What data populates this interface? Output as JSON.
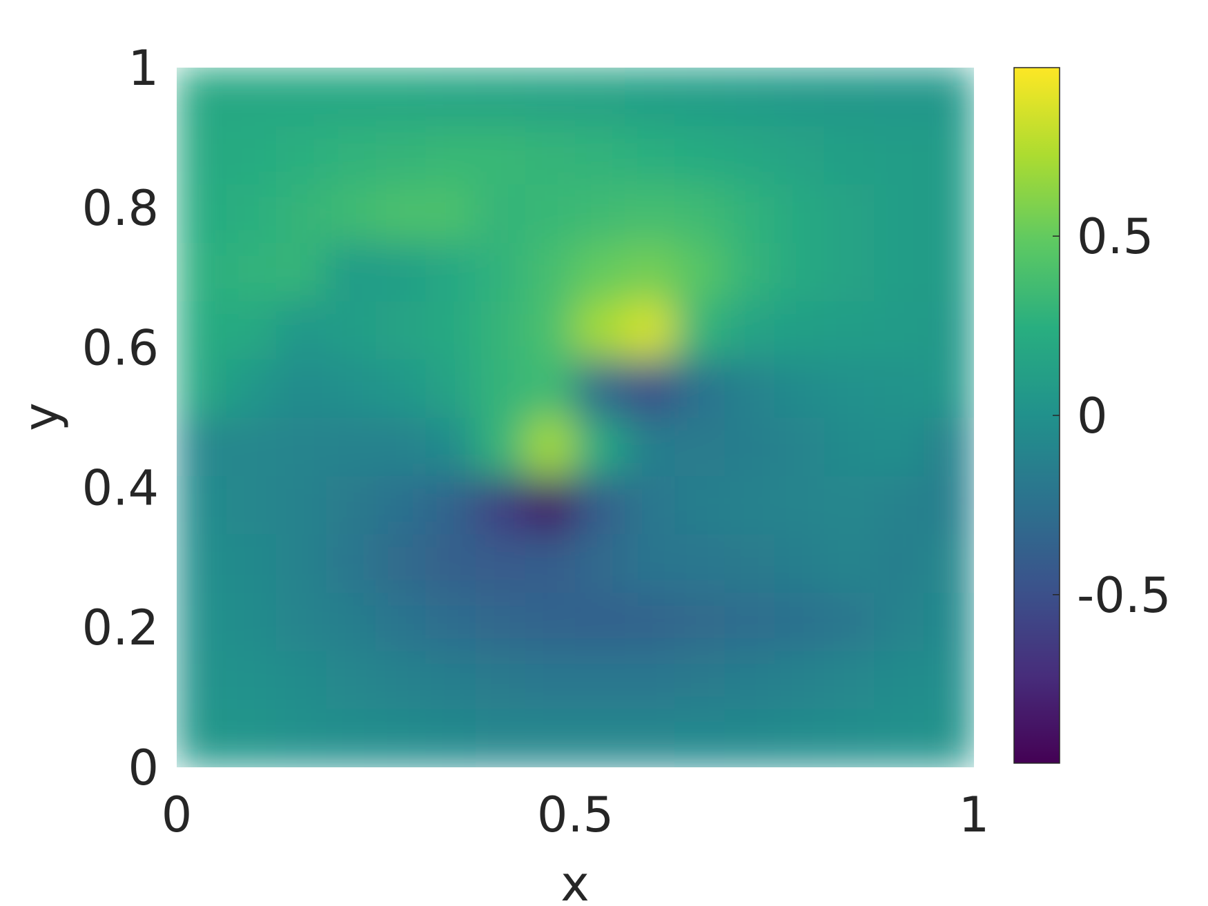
{
  "chart_data": {
    "type": "heatmap",
    "xlabel": "x",
    "ylabel": "y",
    "xlim": [
      0,
      1
    ],
    "ylim": [
      0,
      1
    ],
    "xticks": [
      0,
      0.5,
      1
    ],
    "yticks": [
      0,
      0.2,
      0.4,
      0.6,
      0.8,
      1
    ],
    "colormap": "viridis",
    "clim": [
      -0.97,
      0.97
    ],
    "cticks": [
      -0.5,
      0,
      0.5
    ],
    "grid": false,
    "x": [
      0.031,
      0.094,
      0.156,
      0.219,
      0.281,
      0.344,
      0.406,
      0.469,
      0.531,
      0.594,
      0.656,
      0.719,
      0.781,
      0.844,
      0.906,
      0.969
    ],
    "y": [
      0.042,
      0.125,
      0.208,
      0.292,
      0.375,
      0.458,
      0.542,
      0.625,
      0.708,
      0.792,
      0.875,
      0.958
    ],
    "z": [
      [
        0.05,
        0.03,
        0.0,
        -0.02,
        -0.04,
        -0.06,
        -0.08,
        -0.08,
        -0.08,
        -0.08,
        -0.07,
        -0.06,
        -0.04,
        -0.02,
        0.0,
        0.02
      ],
      [
        0.02,
        0.0,
        -0.04,
        -0.08,
        -0.12,
        -0.15,
        -0.18,
        -0.2,
        -0.2,
        -0.2,
        -0.18,
        -0.15,
        -0.12,
        -0.08,
        -0.05,
        -0.02
      ],
      [
        0.0,
        -0.04,
        -0.1,
        -0.15,
        -0.22,
        -0.28,
        -0.32,
        -0.35,
        -0.36,
        -0.35,
        -0.3,
        -0.28,
        -0.25,
        -0.2,
        -0.12,
        -0.06
      ],
      [
        -0.02,
        -0.06,
        -0.12,
        -0.2,
        -0.3,
        -0.38,
        -0.42,
        -0.4,
        -0.3,
        -0.22,
        -0.2,
        -0.18,
        -0.15,
        -0.1,
        -0.15,
        -0.08
      ],
      [
        -0.05,
        -0.08,
        -0.12,
        -0.18,
        -0.25,
        -0.35,
        -0.6,
        -0.85,
        -0.4,
        -0.2,
        -0.15,
        -0.12,
        -0.1,
        -0.08,
        -0.12,
        -0.15
      ],
      [
        -0.08,
        -0.08,
        -0.1,
        -0.12,
        -0.12,
        -0.05,
        0.3,
        0.7,
        0.2,
        -0.15,
        -0.18,
        -0.15,
        -0.1,
        -0.05,
        -0.02,
        -0.12
      ],
      [
        0.18,
        0.05,
        -0.05,
        0.0,
        0.05,
        0.15,
        0.3,
        0.35,
        -0.3,
        -0.5,
        -0.25,
        -0.12,
        -0.05,
        0.0,
        0.02,
        0.05
      ],
      [
        0.22,
        0.2,
        0.05,
        0.1,
        0.15,
        0.2,
        0.3,
        0.4,
        0.7,
        0.85,
        0.3,
        0.15,
        0.12,
        0.1,
        0.08,
        0.06
      ],
      [
        0.25,
        0.28,
        0.3,
        0.08,
        0.12,
        0.18,
        0.28,
        0.38,
        0.5,
        0.55,
        0.45,
        0.3,
        0.2,
        0.15,
        0.1,
        0.08
      ],
      [
        0.22,
        0.25,
        0.3,
        0.35,
        0.4,
        0.4,
        0.3,
        0.32,
        0.35,
        0.38,
        0.35,
        0.28,
        0.2,
        0.15,
        0.1,
        0.08
      ],
      [
        0.2,
        0.22,
        0.25,
        0.28,
        0.3,
        0.32,
        0.32,
        0.3,
        0.28,
        0.25,
        0.22,
        0.18,
        0.15,
        0.12,
        0.1,
        0.08
      ],
      [
        0.18,
        0.18,
        0.18,
        0.18,
        0.18,
        0.17,
        0.16,
        0.15,
        0.14,
        0.12,
        0.1,
        0.08,
        0.07,
        0.06,
        0.05,
        0.05
      ]
    ]
  }
}
